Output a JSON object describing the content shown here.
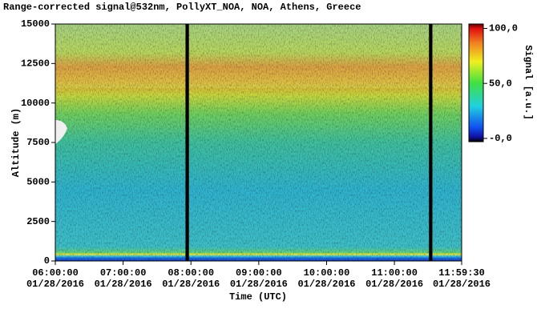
{
  "chart_data": {
    "type": "heatmap",
    "title": "Range-corrected signal@532nm, PollyXT_NOA, NOA, Athens, Greece",
    "x_label": "Time (UTC)",
    "y_label": "Altitude (m)",
    "colorbar_label": "Signal [a.u.]",
    "xlim": [
      6,
      11.991667
    ],
    "xticks": [
      {
        "value": 6,
        "label": "06:00:00",
        "date": "01/28/2016"
      },
      {
        "value": 7,
        "label": "07:00:00",
        "date": "01/28/2016"
      },
      {
        "value": 8,
        "label": "08:00:00",
        "date": "01/28/2016"
      },
      {
        "value": 9,
        "label": "09:00:00",
        "date": "01/28/2016"
      },
      {
        "value": 10,
        "label": "10:00:00",
        "date": "01/28/2016"
      },
      {
        "value": 11,
        "label": "11:00:00",
        "date": "01/28/2016"
      },
      {
        "value": 11.991667,
        "label": "11:59:30",
        "date": "01/28/2016"
      }
    ],
    "ylim": [
      0,
      15000
    ],
    "yticks": [
      0,
      2500,
      5000,
      7500,
      10000,
      12500,
      15000
    ],
    "clim": [
      -3,
      104
    ],
    "cticks": [
      {
        "value": 0,
        "label": "-0,0"
      },
      {
        "value": 50,
        "label": "50,0"
      },
      {
        "value": 100,
        "label": "100,0"
      }
    ],
    "gaps": [
      [
        7.92,
        7.97
      ],
      [
        11.51,
        11.56
      ]
    ]
  }
}
